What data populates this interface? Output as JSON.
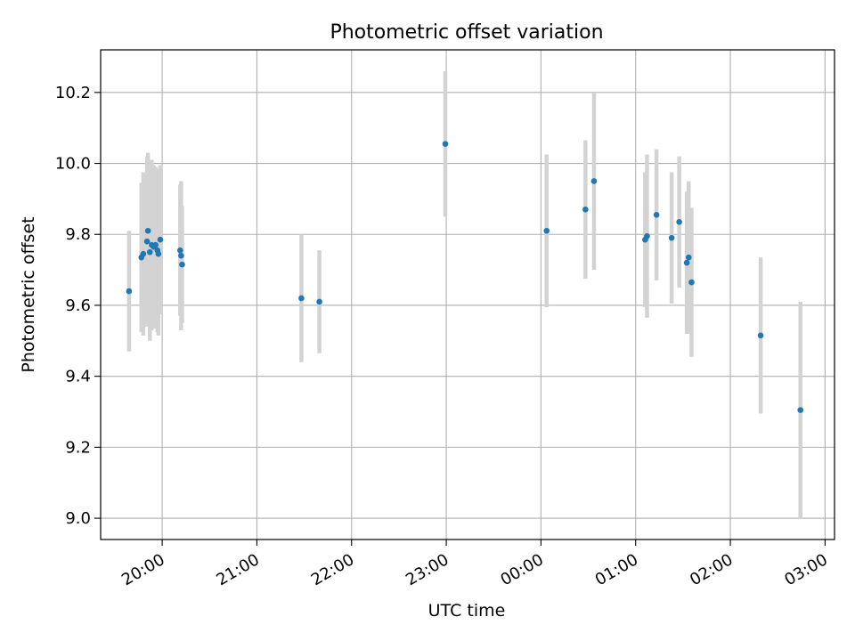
{
  "chart_data": {
    "type": "scatter",
    "title": "Photometric offset variation",
    "xlabel": "UTC time",
    "ylabel": "Photometric offset",
    "x_unit": "hours",
    "grid": true,
    "xlim": [
      19.35,
      27.1
    ],
    "ylim": [
      8.94,
      10.32
    ],
    "xticks": [
      20,
      21,
      22,
      23,
      24,
      25,
      26,
      27
    ],
    "xtick_labels": [
      "20:00",
      "21:00",
      "22:00",
      "23:00",
      "00:00",
      "01:00",
      "02:00",
      "03:00"
    ],
    "yticks": [
      9.0,
      9.2,
      9.4,
      9.6,
      9.8,
      10.0,
      10.2
    ],
    "ytick_labels": [
      "9.0",
      "9.2",
      "9.4",
      "9.6",
      "9.8",
      "10.0",
      "10.2"
    ],
    "colors": {
      "point": "#1f77b4",
      "errorbar": "#d3d3d3",
      "grid": "#b0b0b0"
    },
    "points": [
      {
        "x": 19.65,
        "y": 9.64,
        "err": 0.17
      },
      {
        "x": 19.78,
        "y": 9.735,
        "err": 0.21
      },
      {
        "x": 19.8,
        "y": 9.745,
        "err": 0.23
      },
      {
        "x": 19.84,
        "y": 9.78,
        "err": 0.24
      },
      {
        "x": 19.85,
        "y": 9.81,
        "err": 0.22
      },
      {
        "x": 19.87,
        "y": 9.75,
        "err": 0.25
      },
      {
        "x": 19.89,
        "y": 9.77,
        "err": 0.24
      },
      {
        "x": 19.91,
        "y": 9.765,
        "err": 0.23
      },
      {
        "x": 19.93,
        "y": 9.77,
        "err": 0.22
      },
      {
        "x": 19.95,
        "y": 9.755,
        "err": 0.23
      },
      {
        "x": 19.96,
        "y": 9.745,
        "err": 0.23
      },
      {
        "x": 19.98,
        "y": 9.785,
        "err": 0.21
      },
      {
        "x": 20.19,
        "y": 9.755,
        "err": 0.185
      },
      {
        "x": 20.2,
        "y": 9.74,
        "err": 0.21
      },
      {
        "x": 20.21,
        "y": 9.715,
        "err": 0.165
      },
      {
        "x": 21.47,
        "y": 9.62,
        "err": 0.18
      },
      {
        "x": 21.66,
        "y": 9.61,
        "err": 0.145
      },
      {
        "x": 22.99,
        "y": 10.055,
        "err": 0.205
      },
      {
        "x": 24.06,
        "y": 9.81,
        "err": 0.215
      },
      {
        "x": 24.47,
        "y": 9.87,
        "err": 0.195
      },
      {
        "x": 24.56,
        "y": 9.95,
        "err": 0.25
      },
      {
        "x": 25.1,
        "y": 9.785,
        "err": 0.19
      },
      {
        "x": 25.12,
        "y": 9.795,
        "err": 0.23
      },
      {
        "x": 25.22,
        "y": 9.855,
        "err": 0.185
      },
      {
        "x": 25.38,
        "y": 9.79,
        "err": 0.185
      },
      {
        "x": 25.46,
        "y": 9.835,
        "err": 0.185
      },
      {
        "x": 25.54,
        "y": 9.72,
        "err": 0.2
      },
      {
        "x": 25.56,
        "y": 9.735,
        "err": 0.215
      },
      {
        "x": 25.59,
        "y": 9.665,
        "err": 0.21
      },
      {
        "x": 26.32,
        "y": 9.515,
        "err": 0.22
      },
      {
        "x": 26.74,
        "y": 9.305,
        "err": 0.305
      }
    ]
  }
}
